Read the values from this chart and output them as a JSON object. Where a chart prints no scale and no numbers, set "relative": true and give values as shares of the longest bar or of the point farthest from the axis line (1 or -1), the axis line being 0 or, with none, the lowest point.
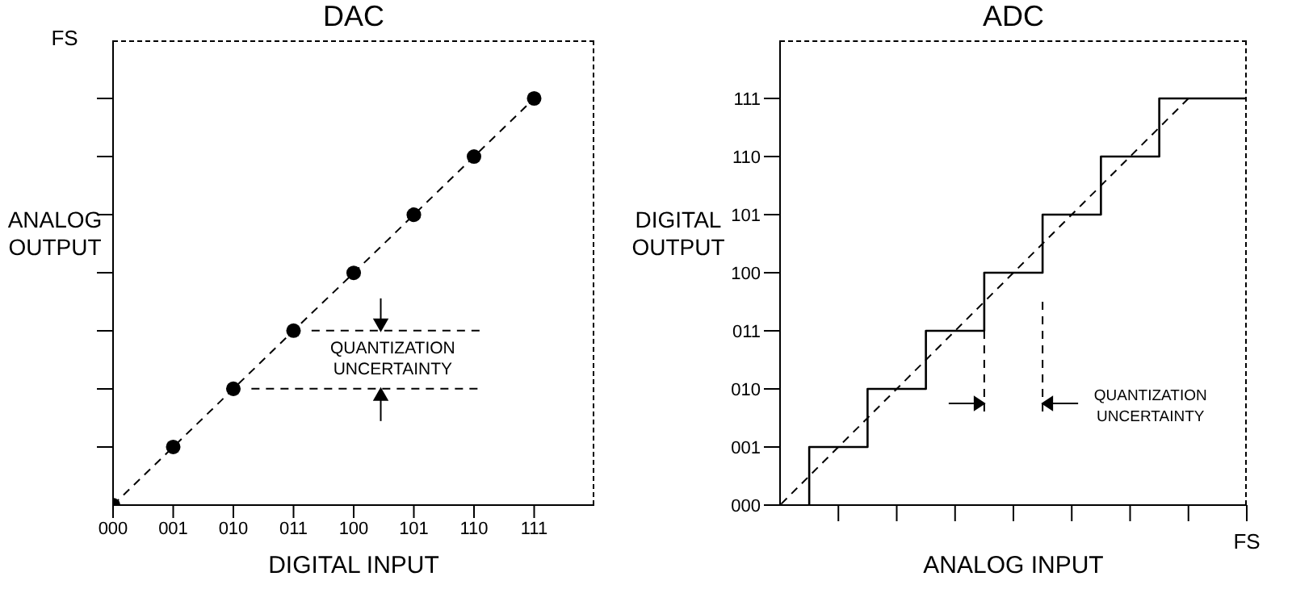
{
  "chart_data": [
    {
      "type": "scatter",
      "title": "DAC",
      "xlabel": "DIGITAL INPUT",
      "ylabel": "ANALOG OUTPUT",
      "annotations": [
        "FS",
        "QUANTIZATION UNCERTAINTY"
      ],
      "relative": true,
      "grid": false,
      "legend": false,
      "categories": [
        "000",
        "001",
        "010",
        "011",
        "100",
        "101",
        "110",
        "111"
      ],
      "ref_lines": [
        {
          "axis": "y",
          "value": 0.286,
          "line_style": "dashed"
        },
        {
          "axis": "y",
          "value": 0.429,
          "line_style": "dashed"
        }
      ],
      "series": [
        {
          "color": "#000000",
          "marker": "circle",
          "values": [
            0,
            0.143,
            0.286,
            0.429,
            0.571,
            0.714,
            0.857,
            1
          ]
        },
        {
          "type": "line",
          "color": "#000000",
          "values": [
            0,
            0.143,
            0.286,
            0.429,
            0.571,
            0.714,
            0.857,
            1
          ],
          "line_style": "dashed"
        }
      ]
    },
    {
      "type": "step",
      "title": "ADC",
      "xlabel": "ANALOG INPUT",
      "ylabel": "DIGITAL OUTPUT",
      "annotations": [
        "FS",
        "QUANTIZATION UNCERTAINTY"
      ],
      "relative": true,
      "grid": false,
      "legend": false,
      "orientation": "horizontal",
      "categories": [
        "111",
        "110",
        "101",
        "100",
        "011",
        "010",
        "001",
        "000"
      ],
      "ref_lines": [
        {
          "axis": "x",
          "value": 0.4375,
          "line_style": "dashed"
        },
        {
          "axis": "x",
          "value": 0.5625,
          "line_style": "dashed"
        }
      ],
      "series": [
        {
          "color": "#000000",
          "values": [
            1,
            0.8125,
            0.6875,
            0.5625,
            0.4375,
            0.3125,
            0.1875,
            0.0625
          ],
          "line_style": "solid"
        },
        {
          "type": "line",
          "color": "#000000",
          "values": [
            0.875,
            0.75,
            0.625,
            0.5,
            0.375,
            0.25,
            0.125,
            0
          ],
          "line_style": "dashed"
        }
      ]
    }
  ]
}
